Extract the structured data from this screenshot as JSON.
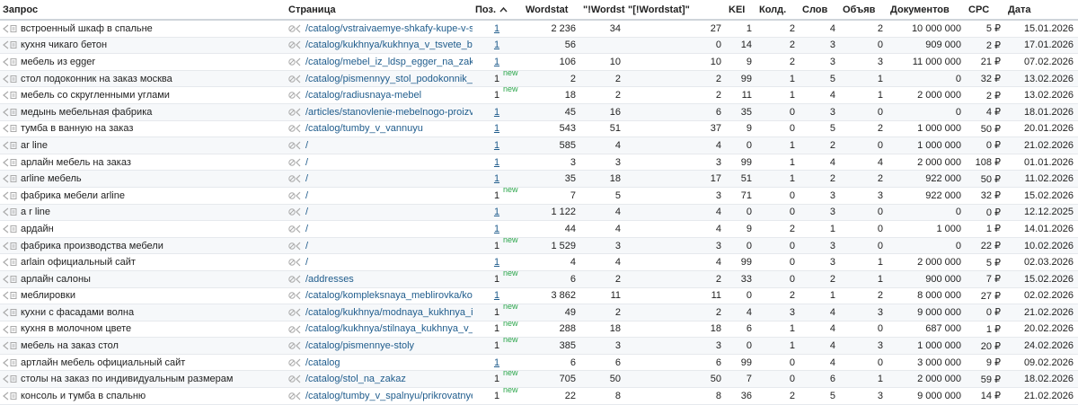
{
  "header": [
    "Запрос",
    "Страница",
    "Поз.",
    "Wordstat",
    "\"!Wordstat\"",
    "\"[!Wordstat]\"",
    "KEI",
    "Колд.",
    "Слов",
    "Объяв",
    "Документов",
    "CPC",
    "Дата"
  ],
  "rows": [
    {
      "cells": [
        "встроенный шкаф в спальне",
        "/catalog/vstraivaemye-shkafy-kupe-v-spaln...",
        "1",
        "2 236",
        "34",
        "27",
        "1",
        "2",
        "4",
        "2",
        "10 000 000",
        "5 ₽",
        "15.01.2026"
      ]
    },
    {
      "cells": [
        "кухня чикаго бетон",
        "/catalog/kukhnya/kukhnya_v_tsvete_beton_...",
        "1",
        "56",
        null,
        "0",
        "14",
        "2",
        "3",
        "0",
        "909 000",
        "2 ₽",
        "17.01.2026"
      ]
    },
    {
      "cells": [
        "мебель из egger",
        "/catalog/mebel_iz_ldsp_egger_na_zakaz",
        "1",
        "106",
        "10",
        "10",
        "9",
        "2",
        "3",
        "3",
        "11 000 000",
        "21 ₽",
        "07.02.2026"
      ]
    },
    {
      "cells": [
        "стол подоконник на заказ москва",
        "/catalog/pismennyy_stol_podokonnik_na_z...",
        "1",
        "2",
        "2",
        "2",
        "99",
        "1",
        "5",
        "1",
        "0",
        "32 ₽",
        "13.02.2026"
      ],
      "badge": "new"
    },
    {
      "cells": [
        "мебель со скругленными углами",
        "/catalog/radiusnaya-mebel",
        "1",
        "18",
        "2",
        "2",
        "11",
        "1",
        "4",
        "1",
        "2 000 000",
        "2 ₽",
        "13.02.2026"
      ],
      "badge": "new"
    },
    {
      "cells": [
        "медынь мебельная фабрика",
        "/articles/stanovlenie-mebelnogo-proizvodst...",
        "1",
        "45",
        "16",
        "6",
        "35",
        "0",
        "3",
        "0",
        "0",
        "4 ₽",
        "18.01.2026"
      ]
    },
    {
      "cells": [
        "тумба в ванную на заказ",
        "/catalog/tumby_v_vannuyu",
        "1",
        "543",
        "51",
        "37",
        "9",
        "0",
        "5",
        "2",
        "1 000 000",
        "50 ₽",
        "20.01.2026"
      ]
    },
    {
      "cells": [
        "ar line",
        "/",
        "1",
        "585",
        "4",
        "4",
        "0",
        "1",
        "2",
        "0",
        "1 000 000",
        "0 ₽",
        "21.02.2026"
      ]
    },
    {
      "cells": [
        "арлайн мебель на заказ",
        "/",
        "1",
        "3",
        "3",
        "3",
        "99",
        "1",
        "4",
        "4",
        "2 000 000",
        "108 ₽",
        "01.01.2026"
      ]
    },
    {
      "cells": [
        "arline мебель",
        "/",
        "1",
        "35",
        "18",
        "17",
        "51",
        "1",
        "2",
        "2",
        "922 000",
        "50 ₽",
        "11.02.2026"
      ]
    },
    {
      "cells": [
        "фабрика мебели arline",
        "/",
        "1",
        "7",
        "5",
        "3",
        "71",
        "0",
        "3",
        "3",
        "922 000",
        "32 ₽",
        "15.02.2026"
      ],
      "badge": "new"
    },
    {
      "cells": [
        "a r line",
        "/",
        "1",
        "1 122",
        "4",
        "4",
        "0",
        "0",
        "3",
        "0",
        "0",
        "0 ₽",
        "12.12.2025"
      ]
    },
    {
      "cells": [
        "ардайн",
        "/",
        "1",
        "44",
        "4",
        "4",
        "9",
        "2",
        "1",
        "0",
        "1 000",
        "1 ₽",
        "14.01.2026"
      ]
    },
    {
      "cells": [
        "фабрика производства мебели",
        "/",
        "1",
        "1 529",
        "3",
        "3",
        "0",
        "0",
        "3",
        "0",
        "0",
        "22 ₽",
        "10.02.2026"
      ],
      "badge": "new"
    },
    {
      "cells": [
        "arlain официальный сайт",
        "/",
        "1",
        "4",
        "4",
        "4",
        "99",
        "0",
        "3",
        "1",
        "2 000 000",
        "5 ₽",
        "02.03.2026"
      ]
    },
    {
      "cells": [
        "арлайн салоны",
        "/addresses",
        "1",
        "6",
        "2",
        "2",
        "33",
        "0",
        "2",
        "1",
        "900 000",
        "7 ₽",
        "15.02.2026"
      ],
      "badge": "new"
    },
    {
      "cells": [
        "меблировки",
        "/catalog/kompleksnaya_meblirovka/kompl...",
        "1",
        "3 862",
        "11",
        "11",
        "0",
        "2",
        "1",
        "2",
        "8 000 000",
        "27 ₽",
        "02.02.2026"
      ]
    },
    {
      "cells": [
        "кухни с фасадами волна",
        "/catalog/kukhnya/modnaya_kukhnya_iz_kol...",
        "1",
        "49",
        "2",
        "2",
        "4",
        "3",
        "4",
        "3",
        "9 000 000",
        "0 ₽",
        "21.02.2026"
      ],
      "badge": "new"
    },
    {
      "cells": [
        "кухня в молочном цвете",
        "/catalog/kukhnya/stilnaya_kukhnya_v_nezh...",
        "1",
        "288",
        "18",
        "18",
        "6",
        "1",
        "4",
        "0",
        "687 000",
        "1 ₽",
        "20.02.2026"
      ],
      "badge": "new"
    },
    {
      "cells": [
        "мебель на заказ стол",
        "/catalog/pismennye-stoly",
        "1",
        "385",
        "3",
        "3",
        "0",
        "1",
        "4",
        "3",
        "1 000 000",
        "20 ₽",
        "24.02.2026"
      ],
      "badge": "new"
    },
    {
      "cells": [
        "артлайн мебель официальный сайт",
        "/catalog",
        "1",
        "6",
        "6",
        "6",
        "99",
        "0",
        "4",
        "0",
        "3 000 000",
        "9 ₽",
        "09.02.2026"
      ]
    },
    {
      "cells": [
        "столы на заказ по индивидуальным размерам",
        "/catalog/stol_na_zakaz",
        "1",
        "705",
        "50",
        "50",
        "7",
        "0",
        "6",
        "1",
        "2 000 000",
        "59 ₽",
        "18.02.2026"
      ],
      "badge": "new"
    },
    {
      "cells": [
        "консоль и тумба в спальню",
        "/catalog/tumby_v_spalnyu/prikrovatnye_tu...",
        "1",
        "22",
        "8",
        "8",
        "36",
        "2",
        "5",
        "3",
        "9 000 000",
        "14 ₽",
        "21.02.2026"
      ],
      "badge": "new"
    }
  ]
}
